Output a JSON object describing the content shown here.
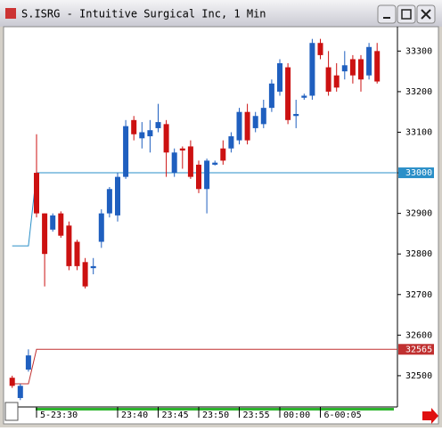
{
  "chart_data": {
    "type": "candlestick",
    "title": "S.ISRG - Intuitive Surgical Inc, 1 Min",
    "categories": [
      null,
      null,
      null,
      "5-23:30",
      null,
      null,
      null,
      null,
      null,
      null,
      null,
      null,
      null,
      "23:40",
      null,
      null,
      null,
      null,
      "23:45",
      null,
      null,
      null,
      null,
      "23:50",
      null,
      null,
      null,
      null,
      "23:55",
      null,
      null,
      null,
      null,
      "00:00",
      null,
      null,
      null,
      null,
      "6-00:05",
      null,
      null,
      null,
      null,
      null,
      null,
      null
    ],
    "open": [
      32495,
      32445,
      32515,
      33000,
      32900,
      32860,
      32900,
      32870,
      32830,
      32780,
      32765,
      32830,
      32900,
      32895,
      32990,
      33130,
      33085,
      33090,
      33110,
      33120,
      33000,
      33060,
      33065,
      33020,
      32960,
      33020,
      33060,
      33060,
      33080,
      33150,
      33110,
      33120,
      33160,
      33200,
      33260,
      33140,
      33185,
      33190,
      33320,
      33260,
      33240,
      33250,
      33280,
      33280,
      33240,
      33300
    ],
    "high": [
      32500,
      32480,
      32565,
      33095,
      32900,
      32900,
      32905,
      32880,
      32835,
      32790,
      32790,
      32910,
      32965,
      33000,
      33130,
      33140,
      33125,
      33130,
      33170,
      33130,
      33060,
      33065,
      33080,
      33030,
      33035,
      33030,
      33080,
      33100,
      33160,
      33170,
      33150,
      33180,
      33230,
      33280,
      33270,
      33180,
      33195,
      33330,
      33330,
      33300,
      33270,
      33300,
      33290,
      33290,
      33320,
      33320
    ],
    "low": [
      32470,
      32440,
      32510,
      32890,
      32720,
      32855,
      32840,
      32760,
      32760,
      32715,
      32750,
      32815,
      32890,
      32880,
      32985,
      33080,
      33060,
      33050,
      33100,
      32990,
      32990,
      33010,
      32985,
      32950,
      32900,
      33018,
      33020,
      33050,
      33070,
      33070,
      33100,
      33110,
      33150,
      33190,
      33120,
      33110,
      33180,
      33180,
      33280,
      33190,
      33200,
      33230,
      33220,
      33200,
      33230,
      33220
    ],
    "close": [
      32475,
      32475,
      32550,
      32900,
      32800,
      32895,
      32845,
      32770,
      32770,
      32720,
      32770,
      32900,
      32960,
      32990,
      33115,
      33095,
      33100,
      33105,
      33125,
      33050,
      33050,
      33055,
      32990,
      32960,
      33030,
      33025,
      33030,
      33090,
      33150,
      33080,
      33140,
      33160,
      33220,
      33270,
      33130,
      33145,
      33190,
      33320,
      33290,
      33200,
      33210,
      33265,
      33240,
      33230,
      33310,
      33225
    ],
    "up_color": "#1f5fbf",
    "down_color": "#cc1111",
    "ylim": [
      32423,
      33360
    ],
    "yticks": [
      32500,
      32600,
      32700,
      32800,
      32900,
      33000,
      33100,
      33200,
      33300
    ],
    "reference_lines": [
      {
        "value": 33000,
        "start": 32820,
        "color": "#2a8fc8"
      },
      {
        "value": 32565,
        "start": 32480,
        "color": "#c03030"
      }
    ]
  }
}
